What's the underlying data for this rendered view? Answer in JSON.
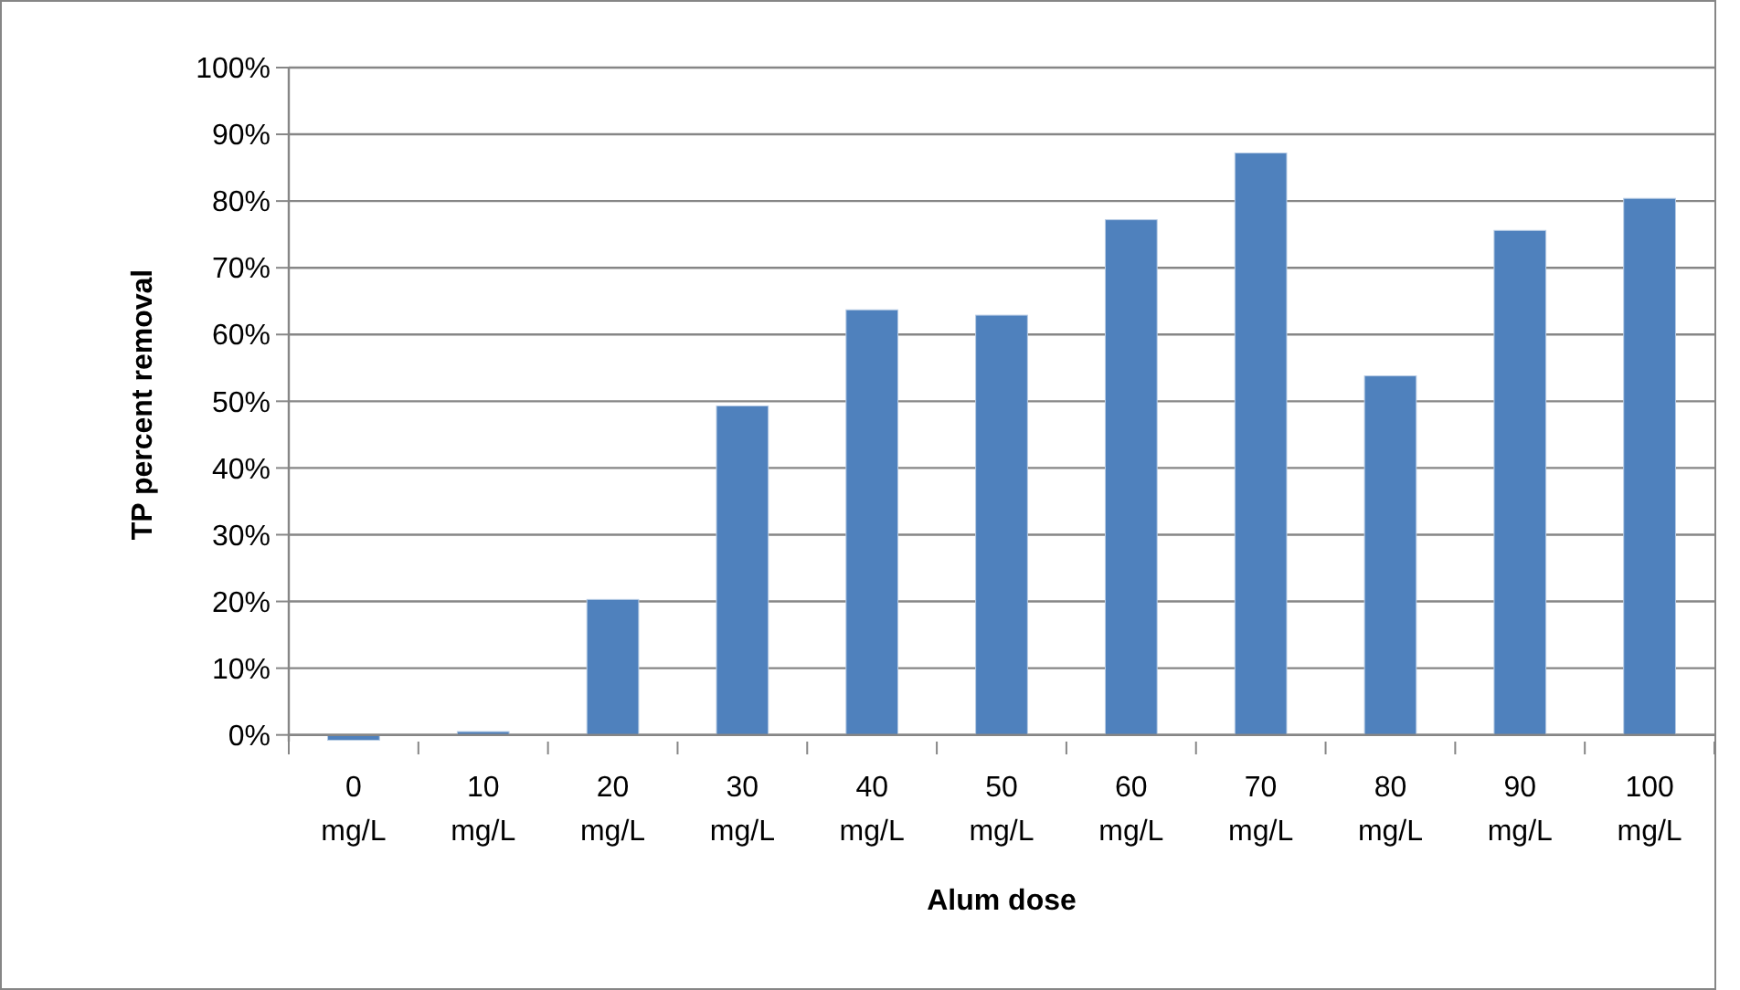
{
  "chart_data": {
    "type": "bar",
    "xlabel": "Alum dose",
    "ylabel": "TP percent removal",
    "categories": [
      "0 mg/L",
      "10 mg/L",
      "20 mg/L",
      "30 mg/L",
      "40 mg/L",
      "50 mg/L",
      "60 mg/L",
      "70 mg/L",
      "80 mg/L",
      "90 mg/L",
      "100 mg/L"
    ],
    "values": [
      -0.8,
      0.5,
      20.3,
      49.3,
      63.7,
      62.9,
      77.2,
      87.2,
      53.8,
      75.6,
      80.4
    ],
    "color": "#4f81bd",
    "ylim": [
      -1,
      100
    ],
    "yticks": [
      {
        "value": 0,
        "label": "0%"
      },
      {
        "value": 10,
        "label": "10%"
      },
      {
        "value": 20,
        "label": "20%"
      },
      {
        "value": 30,
        "label": "30%"
      },
      {
        "value": 40,
        "label": "40%"
      },
      {
        "value": 50,
        "label": "50%"
      },
      {
        "value": 60,
        "label": "60%"
      },
      {
        "value": 70,
        "label": "70%"
      },
      {
        "value": 80,
        "label": "80%"
      },
      {
        "value": 90,
        "label": "90%"
      },
      {
        "value": 100,
        "label": "100%"
      }
    ],
    "grid": "y"
  }
}
